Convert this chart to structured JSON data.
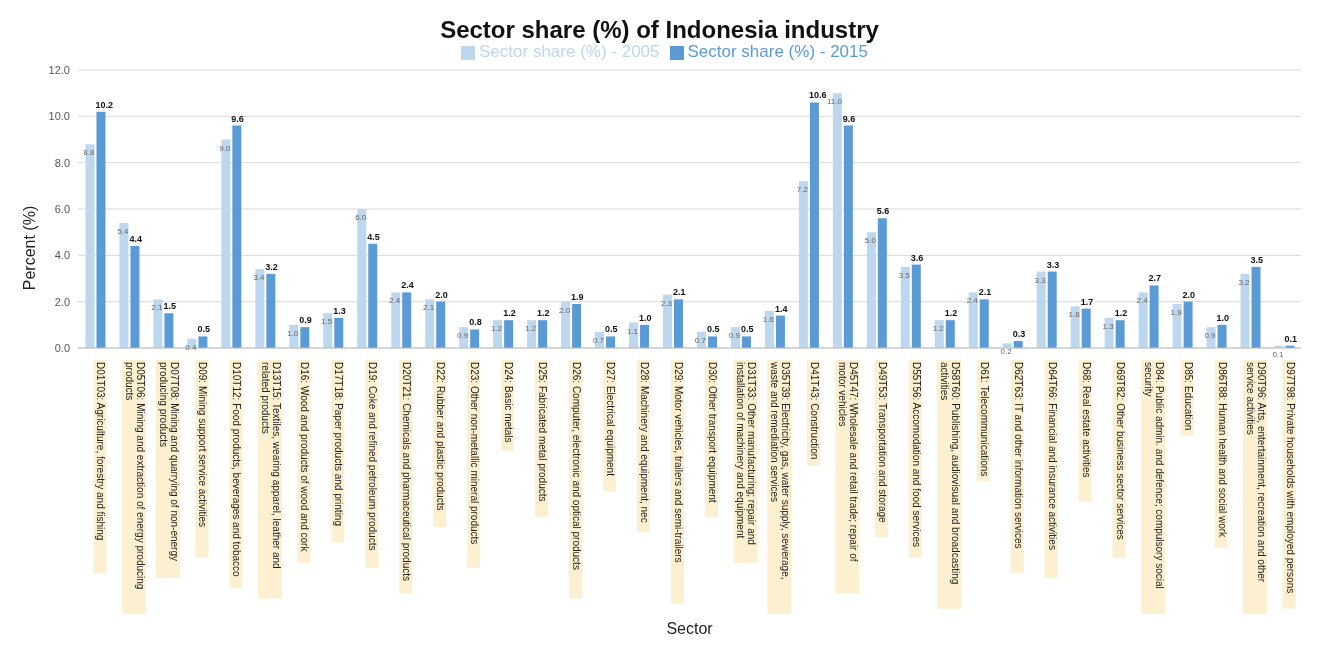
{
  "chart_data": {
    "type": "bar",
    "title": "Sector share (%) of Indonesia industry",
    "xlabel": "Sector",
    "ylabel": "Percent (%)",
    "categories": [
      "D01T03: Agriculture, forestry and fishing",
      "D05T06: Mining and extraction of energy producing products",
      "D07T08: Mining and quarrying of non-energy producing products",
      "D09: Mining support service activities",
      "D10T12: Food products, beverages and tobacco",
      "D13T15: Textiles, wearing apparel, leather and related products",
      "D16: Wood and products of wood and cork",
      "D17T18: Paper products and printing",
      "D19: Coke and refined petroleum products",
      "D20T21: Chemicals and pharmaceutical products",
      "D22: Rubber and plastic products",
      "D23: Other non-metallic mineral products",
      "D24: Basic metals",
      "D25: Fabricated metal products",
      "D26: Computer, electronic and optical products",
      "D27: Electrical equipment",
      "D28: Machinery and equipment, nec",
      "D29: Motor vehicles, trailers and semi-trailers",
      "D30: Other transport equipment",
      "D31T33: Other manufacturing; repair and installation of machinery and equipment",
      "D35T39: Electricity, gas, water supply, sewerage, waste and remediation services",
      "D41T43: Construction",
      "D45T47: Wholesale and retail trade; repair of motor vehicles",
      "D49T53: Transportation and storage",
      "D55T56: Accomodation and food services",
      "D58T60: Publishing, audiovisual and broadcasting activities",
      "D61: Telecommunications",
      "D62T63: IT and other information services",
      "D64T66: Financial and insurance activities",
      "D68: Real estate activities",
      "D69T82: Other business sector services",
      "D84: Public admin. and defence; compulsory social security",
      "D85: Education",
      "D86T88: Human health and social work",
      "D90T96: Arts, entertainment, recreation and other service activities",
      "D97T98: Private households with employed persons"
    ],
    "series": [
      {
        "name": "Sector share (%) - 2005",
        "color": "#bdd7ee",
        "values": [
          8.8,
          5.4,
          2.1,
          0.4,
          9.0,
          3.4,
          1.0,
          1.5,
          6.0,
          2.4,
          2.1,
          0.9,
          1.2,
          1.2,
          2.0,
          0.7,
          1.1,
          2.3,
          0.7,
          0.9,
          1.6,
          7.2,
          11.0,
          5.0,
          3.5,
          1.2,
          2.4,
          0.2,
          3.3,
          1.8,
          1.3,
          2.4,
          1.9,
          0.9,
          3.2,
          0.1
        ],
        "value_labels": [
          "8.8",
          "5.4",
          "2.1",
          "0.4",
          "9.0",
          "3.4",
          "1.0",
          "1.5",
          "6.0",
          "2.4",
          "2.1",
          "0.9",
          "1.2",
          "1.2",
          "2.0",
          "0.7",
          "1.1",
          "2.3",
          "0.7",
          "0.9",
          "1.6",
          "7.2",
          "11.0",
          "5.0",
          "3.5",
          "1.2",
          "2.4",
          "0.2",
          "3.3",
          "1.8",
          "1.3",
          "2.4",
          "1.9",
          "0.9",
          "3.2",
          "0.1"
        ]
      },
      {
        "name": "Sector share (%) - 2015",
        "color": "#5b9bd5",
        "values": [
          10.2,
          4.4,
          1.5,
          0.5,
          9.6,
          3.2,
          0.9,
          1.3,
          4.5,
          2.4,
          2.0,
          0.8,
          1.2,
          1.2,
          1.9,
          0.5,
          1.0,
          2.1,
          0.5,
          0.5,
          1.4,
          10.6,
          9.6,
          5.6,
          3.6,
          1.2,
          2.1,
          0.3,
          3.3,
          1.7,
          1.2,
          2.7,
          2.0,
          1.0,
          3.5,
          0.1
        ],
        "value_labels": [
          "10.2",
          "4.4",
          "1.5",
          "0.5",
          "9.6",
          "3.2",
          "0.9",
          "1.3",
          "4.5",
          "2.4",
          "2.0",
          "0.8",
          "1.2",
          "1.2",
          "1.9",
          "0.5",
          "1.0",
          "2.1",
          "0.5",
          "0.5",
          "1.4",
          "10.6",
          "9.6",
          "5.6",
          "3.6",
          "1.2",
          "2.1",
          "0.3",
          "3.3",
          "1.7",
          "1.2",
          "2.7",
          "2.0",
          "1.0",
          "3.5",
          "0.1"
        ]
      }
    ],
    "ylim": [
      0,
      12
    ],
    "yticks": [
      {
        "value": 0,
        "label": "0.0"
      },
      {
        "value": 2,
        "label": "2.0"
      },
      {
        "value": 4,
        "label": "4.0"
      },
      {
        "value": 6,
        "label": "6.0"
      },
      {
        "value": 8,
        "label": "8.0"
      },
      {
        "value": 10,
        "label": "10.0"
      },
      {
        "value": 12,
        "label": "12.0"
      }
    ],
    "grid": "y",
    "legend": "top"
  }
}
